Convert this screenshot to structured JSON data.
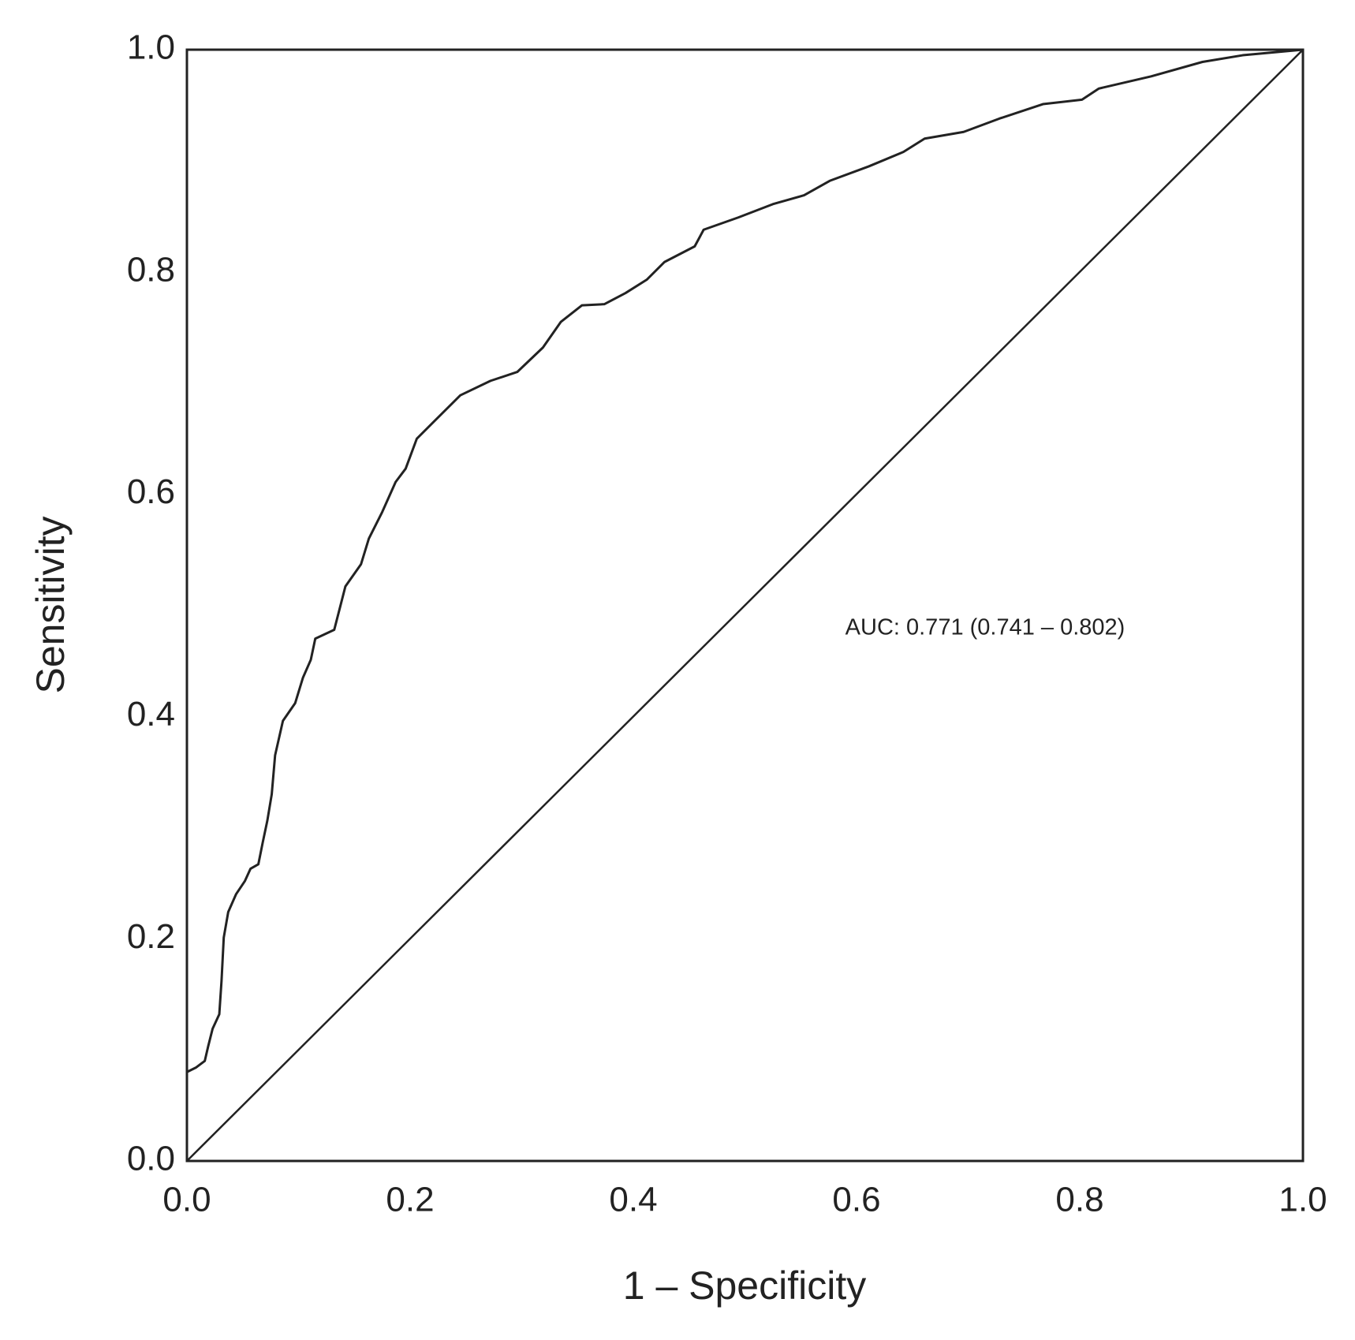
{
  "chart_data": {
    "type": "line",
    "xlabel": "1 – Specificity",
    "ylabel": "Sensitivity",
    "annotation": "AUC: 0.771 (0.741 – 0.802)",
    "x": [
      0,
      0,
      0.008,
      0.016,
      0.019,
      0.023,
      0.029,
      0.031,
      0.033,
      0.037,
      0.044,
      0.052,
      0.057,
      0.064,
      0.068,
      0.072,
      0.076,
      0.079,
      0.086,
      0.097,
      0.104,
      0.111,
      0.115,
      0.132,
      0.142,
      0.156,
      0.163,
      0.175,
      0.187,
      0.196,
      0.206,
      0.222,
      0.245,
      0.272,
      0.296,
      0.319,
      0.335,
      0.354,
      0.374,
      0.393,
      0.412,
      0.428,
      0.455,
      0.463,
      0.494,
      0.525,
      0.553,
      0.576,
      0.611,
      0.642,
      0.661,
      0.696,
      0.728,
      0.767,
      0.802,
      0.817,
      0.864,
      0.91,
      0.946,
      1
    ],
    "values": [
      0,
      0.08,
      0.084,
      0.09,
      0.103,
      0.119,
      0.132,
      0.162,
      0.201,
      0.224,
      0.24,
      0.252,
      0.263,
      0.267,
      0.287,
      0.306,
      0.33,
      0.365,
      0.396,
      0.412,
      0.435,
      0.451,
      0.47,
      0.478,
      0.517,
      0.537,
      0.56,
      0.584,
      0.611,
      0.623,
      0.65,
      0.666,
      0.689,
      0.702,
      0.71,
      0.732,
      0.755,
      0.77,
      0.771,
      0.781,
      0.793,
      0.809,
      0.823,
      0.838,
      0.849,
      0.861,
      0.869,
      0.882,
      0.895,
      0.908,
      0.92,
      0.926,
      0.938,
      0.951,
      0.955,
      0.965,
      0.976,
      0.989,
      0.995,
      1
    ],
    "color": "#222222",
    "diagonal": true,
    "xlim": [
      0,
      1
    ],
    "ylim": [
      0,
      1
    ],
    "xticks": [
      {
        "value": 0,
        "label": "0.0"
      },
      0.2,
      0.4,
      0.6,
      0.8,
      {
        "value": 1,
        "label": "1.0"
      }
    ],
    "yticks": [
      {
        "value": 0,
        "label": "0.0"
      },
      0.2,
      0.4,
      0.6,
      0.8,
      {
        "value": 1,
        "label": "1.0"
      }
    ]
  }
}
